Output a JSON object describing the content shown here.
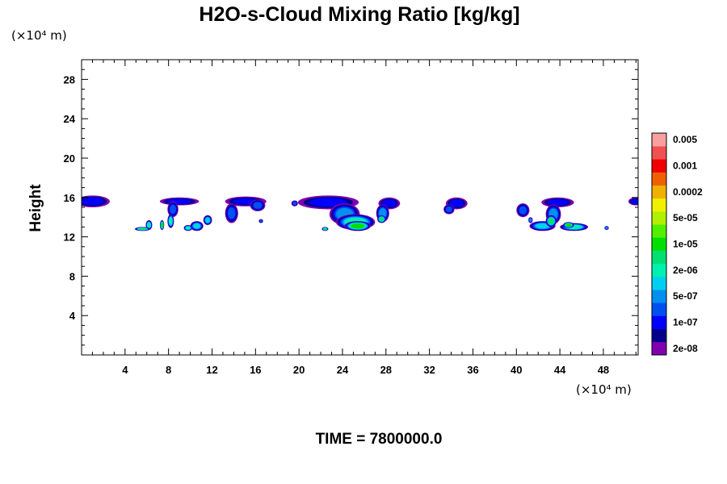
{
  "chart_data": {
    "type": "heatmap",
    "title": "H2O-s-Cloud Mixing Ratio [kg/kg]",
    "ylabel": "Height",
    "x_unit": "(×10⁴ m)",
    "y_unit": "(×10⁴ m)",
    "time_label": "TIME = 7800000.0",
    "xlim": [
      0,
      51.2
    ],
    "ylim": [
      0,
      30
    ],
    "xticks": [
      4,
      8,
      12,
      16,
      20,
      24,
      28,
      32,
      36,
      40,
      44,
      48
    ],
    "xtick_labels": [
      "4",
      "8",
      "12",
      "16",
      "20",
      "24",
      "28",
      "32",
      "36",
      "40",
      "44",
      "48"
    ],
    "yticks": [
      4,
      8,
      12,
      16,
      20,
      24,
      28
    ],
    "ytick_labels": [
      "4",
      "8",
      "12",
      "16",
      "20",
      "24",
      "28"
    ],
    "colorbar": {
      "colors": [
        "#8000b0",
        "#00008c",
        "#0000ff",
        "#0050f0",
        "#0090f0",
        "#00d0f0",
        "#00f0b0",
        "#00e070",
        "#00e000",
        "#50f000",
        "#b0f000",
        "#f0f000",
        "#f0b000",
        "#f06000",
        "#f00000",
        "#f05050",
        "#f8a0a0"
      ],
      "labels": [
        "2e-08",
        "1e-07",
        "5e-07",
        "2e-06",
        "1e-05",
        "5e-05",
        "0.0002",
        "0.001",
        "0.005"
      ]
    },
    "cloud_blobs": [
      {
        "x": 1.0,
        "y": 15.6,
        "rx": 1.6,
        "ry": 0.6,
        "level": 2
      },
      {
        "x": 51.0,
        "y": 15.6,
        "rx": 0.7,
        "ry": 0.4,
        "level": 2
      },
      {
        "x": 9.0,
        "y": 15.6,
        "rx": 1.8,
        "ry": 0.4,
        "level": 2
      },
      {
        "x": 8.4,
        "y": 14.8,
        "rx": 0.5,
        "ry": 0.8,
        "level": 3
      },
      {
        "x": 8.2,
        "y": 13.6,
        "rx": 0.3,
        "ry": 0.7,
        "level": 6
      },
      {
        "x": 6.2,
        "y": 13.2,
        "rx": 0.3,
        "ry": 0.5,
        "level": 6
      },
      {
        "x": 5.6,
        "y": 12.8,
        "rx": 0.7,
        "ry": 0.2,
        "level": 7
      },
      {
        "x": 7.4,
        "y": 13.2,
        "rx": 0.2,
        "ry": 0.5,
        "level": 8
      },
      {
        "x": 9.8,
        "y": 12.9,
        "rx": 0.4,
        "ry": 0.3,
        "level": 6
      },
      {
        "x": 10.6,
        "y": 13.1,
        "rx": 0.6,
        "ry": 0.5,
        "level": 5
      },
      {
        "x": 11.6,
        "y": 13.7,
        "rx": 0.4,
        "ry": 0.5,
        "level": 5
      },
      {
        "x": 15.1,
        "y": 15.6,
        "rx": 1.9,
        "ry": 0.5,
        "level": 2
      },
      {
        "x": 13.8,
        "y": 14.4,
        "rx": 0.6,
        "ry": 1.0,
        "level": 3
      },
      {
        "x": 16.2,
        "y": 15.2,
        "rx": 0.7,
        "ry": 0.6,
        "level": 3
      },
      {
        "x": 16.5,
        "y": 13.6,
        "rx": 0.2,
        "ry": 0.2,
        "level": 3
      },
      {
        "x": 19.6,
        "y": 15.4,
        "rx": 0.3,
        "ry": 0.3,
        "level": 3
      },
      {
        "x": 22.7,
        "y": 15.5,
        "rx": 2.8,
        "ry": 0.7,
        "level": 2
      },
      {
        "x": 24.2,
        "y": 14.3,
        "rx": 1.4,
        "ry": 1.1,
        "level": 4
      },
      {
        "x": 25.2,
        "y": 13.5,
        "rx": 1.8,
        "ry": 0.8,
        "level": 6
      },
      {
        "x": 25.4,
        "y": 13.1,
        "rx": 1.2,
        "ry": 0.5,
        "level": 8
      },
      {
        "x": 28.3,
        "y": 15.4,
        "rx": 1.0,
        "ry": 0.6,
        "level": 2
      },
      {
        "x": 27.7,
        "y": 14.4,
        "rx": 0.6,
        "ry": 0.9,
        "level": 4
      },
      {
        "x": 27.6,
        "y": 13.8,
        "rx": 0.4,
        "ry": 0.4,
        "level": 7
      },
      {
        "x": 22.4,
        "y": 12.8,
        "rx": 0.3,
        "ry": 0.2,
        "level": 7
      },
      {
        "x": 34.5,
        "y": 15.4,
        "rx": 1.0,
        "ry": 0.6,
        "level": 2
      },
      {
        "x": 33.8,
        "y": 14.8,
        "rx": 0.5,
        "ry": 0.5,
        "level": 3
      },
      {
        "x": 40.6,
        "y": 14.7,
        "rx": 0.6,
        "ry": 0.7,
        "level": 3
      },
      {
        "x": 41.3,
        "y": 13.7,
        "rx": 0.2,
        "ry": 0.3,
        "level": 4
      },
      {
        "x": 43.8,
        "y": 15.5,
        "rx": 1.5,
        "ry": 0.5,
        "level": 2
      },
      {
        "x": 43.4,
        "y": 14.3,
        "rx": 0.7,
        "ry": 1.0,
        "level": 4
      },
      {
        "x": 42.4,
        "y": 13.1,
        "rx": 1.2,
        "ry": 0.5,
        "level": 5
      },
      {
        "x": 43.2,
        "y": 13.6,
        "rx": 0.5,
        "ry": 0.6,
        "level": 7
      },
      {
        "x": 45.3,
        "y": 13.0,
        "rx": 1.3,
        "ry": 0.4,
        "level": 6
      },
      {
        "x": 44.8,
        "y": 13.2,
        "rx": 0.5,
        "ry": 0.3,
        "level": 8
      },
      {
        "x": 48.3,
        "y": 12.9,
        "rx": 0.2,
        "ry": 0.2,
        "level": 4
      }
    ]
  }
}
